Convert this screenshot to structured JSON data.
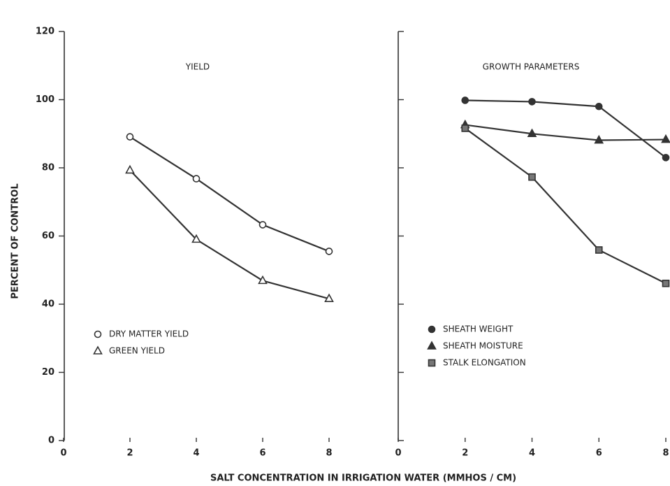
{
  "xlabel": "SALT CONCENTRATION IN IRRIGATION WATER   (MMHOS / CM)",
  "ylabel": "PERCENT OF CONTROL",
  "chart_data": [
    {
      "type": "line",
      "title": "YIELD",
      "x": [
        2,
        4,
        6,
        8
      ],
      "series": [
        {
          "name": "DRY MATTER YIELD",
          "color": "#333333",
          "marker": "circle",
          "filled": false,
          "values": [
            89.1,
            76.8,
            63.3,
            55.5
          ]
        },
        {
          "name": "GREEN YIELD",
          "color": "#333333",
          "marker": "triangle",
          "filled": false,
          "values": [
            79.3,
            59,
            46.9,
            41.6
          ]
        }
      ],
      "xlim": [
        0,
        8
      ],
      "xticks": [
        0,
        2,
        4,
        6,
        8
      ],
      "ylim": [
        0,
        120
      ],
      "yticks": [
        0,
        20,
        40,
        60,
        80,
        100,
        120
      ],
      "show_ytick_labels": true,
      "legend": "lower left"
    },
    {
      "type": "line",
      "title": "GROWTH PARAMETERS",
      "x": [
        2,
        4,
        6,
        8
      ],
      "series": [
        {
          "name": "SHEATH WEIGHT",
          "color": "#333333",
          "marker": "circle",
          "filled": true,
          "values": [
            99.8,
            99.4,
            98,
            83
          ]
        },
        {
          "name": "SHEATH MOISTURE",
          "color": "#333333",
          "marker": "triangle",
          "filled": true,
          "values": [
            92.6,
            90,
            88.1,
            88.3
          ]
        },
        {
          "name": "STALK ELONGATION",
          "color": "#333333",
          "marker": "square",
          "filled": true,
          "values": [
            91.6,
            77.3,
            55.9,
            46.1
          ]
        }
      ],
      "xlim": [
        0,
        8
      ],
      "xticks": [
        0,
        2,
        4,
        6,
        8
      ],
      "ylim": [
        0,
        120
      ],
      "yticks": [
        0,
        20,
        40,
        60,
        80,
        100,
        120
      ],
      "show_ytick_labels": false,
      "legend": "lower left"
    }
  ]
}
